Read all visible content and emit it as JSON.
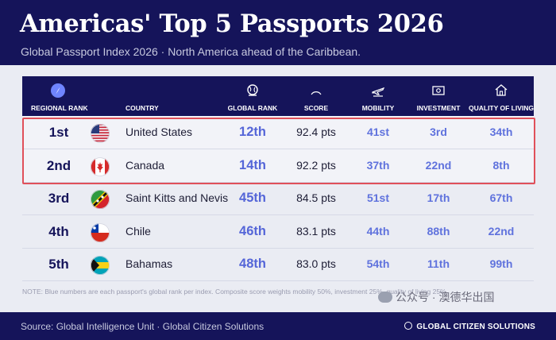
{
  "header": {
    "title": "Americas' Top 5 Passports 2026",
    "subtitle": "Global Passport Index 2026  ·  North America ahead of the Caribbean."
  },
  "colors": {
    "navy": "#15145a",
    "blue_rank": "#5566d8",
    "highlight_border": "#e0505a",
    "background": "#eaecf3"
  },
  "chart_data": {
    "type": "table",
    "columns": [
      "REGIONAL RANK",
      "COUNTRY",
      "GLOBAL RANK",
      "SCORE",
      "MOBILITY",
      "INVESTMENT",
      "QUALITY OF LIVING"
    ],
    "column_icons": [
      "compass-icon",
      "",
      "globe-icon",
      "gauge-icon",
      "plane-icon",
      "banknote-icon",
      "house-icon"
    ],
    "rows": [
      {
        "regional_rank": "1st",
        "flag": "us-flag",
        "country": "United States",
        "global_rank": "12th",
        "score": "92.4 pts",
        "mobility": "41st",
        "investment": "3rd",
        "quality_of_living": "34th",
        "highlighted": true
      },
      {
        "regional_rank": "2nd",
        "flag": "ca-flag",
        "country": "Canada",
        "global_rank": "14th",
        "score": "92.2 pts",
        "mobility": "37th",
        "investment": "22nd",
        "quality_of_living": "8th",
        "highlighted": true
      },
      {
        "regional_rank": "3rd",
        "flag": "kn-flag",
        "country": "Saint Kitts and Nevis",
        "global_rank": "45th",
        "score": "84.5 pts",
        "mobility": "51st",
        "investment": "17th",
        "quality_of_living": "67th",
        "highlighted": false
      },
      {
        "regional_rank": "4th",
        "flag": "cl-flag",
        "country": "Chile",
        "global_rank": "46th",
        "score": "83.1 pts",
        "mobility": "44th",
        "investment": "88th",
        "quality_of_living": "22nd",
        "highlighted": false
      },
      {
        "regional_rank": "5th",
        "flag": "bs-flag",
        "country": "Bahamas",
        "global_rank": "48th",
        "score": "83.0 pts",
        "mobility": "54th",
        "investment": "11th",
        "quality_of_living": "99th",
        "highlighted": false
      }
    ]
  },
  "note": "NOTE:  Blue numbers are each passport's global rank per index.  Composite score weights mobility 50%, investment 25%, quality of living 25%.",
  "footer": {
    "source": "Source: Global Intelligence Unit  ·  Global Citizen Solutions",
    "brand": "GLOBAL CITIZEN SOLUTIONS"
  },
  "watermark": "公众号 · 澳德华出国"
}
